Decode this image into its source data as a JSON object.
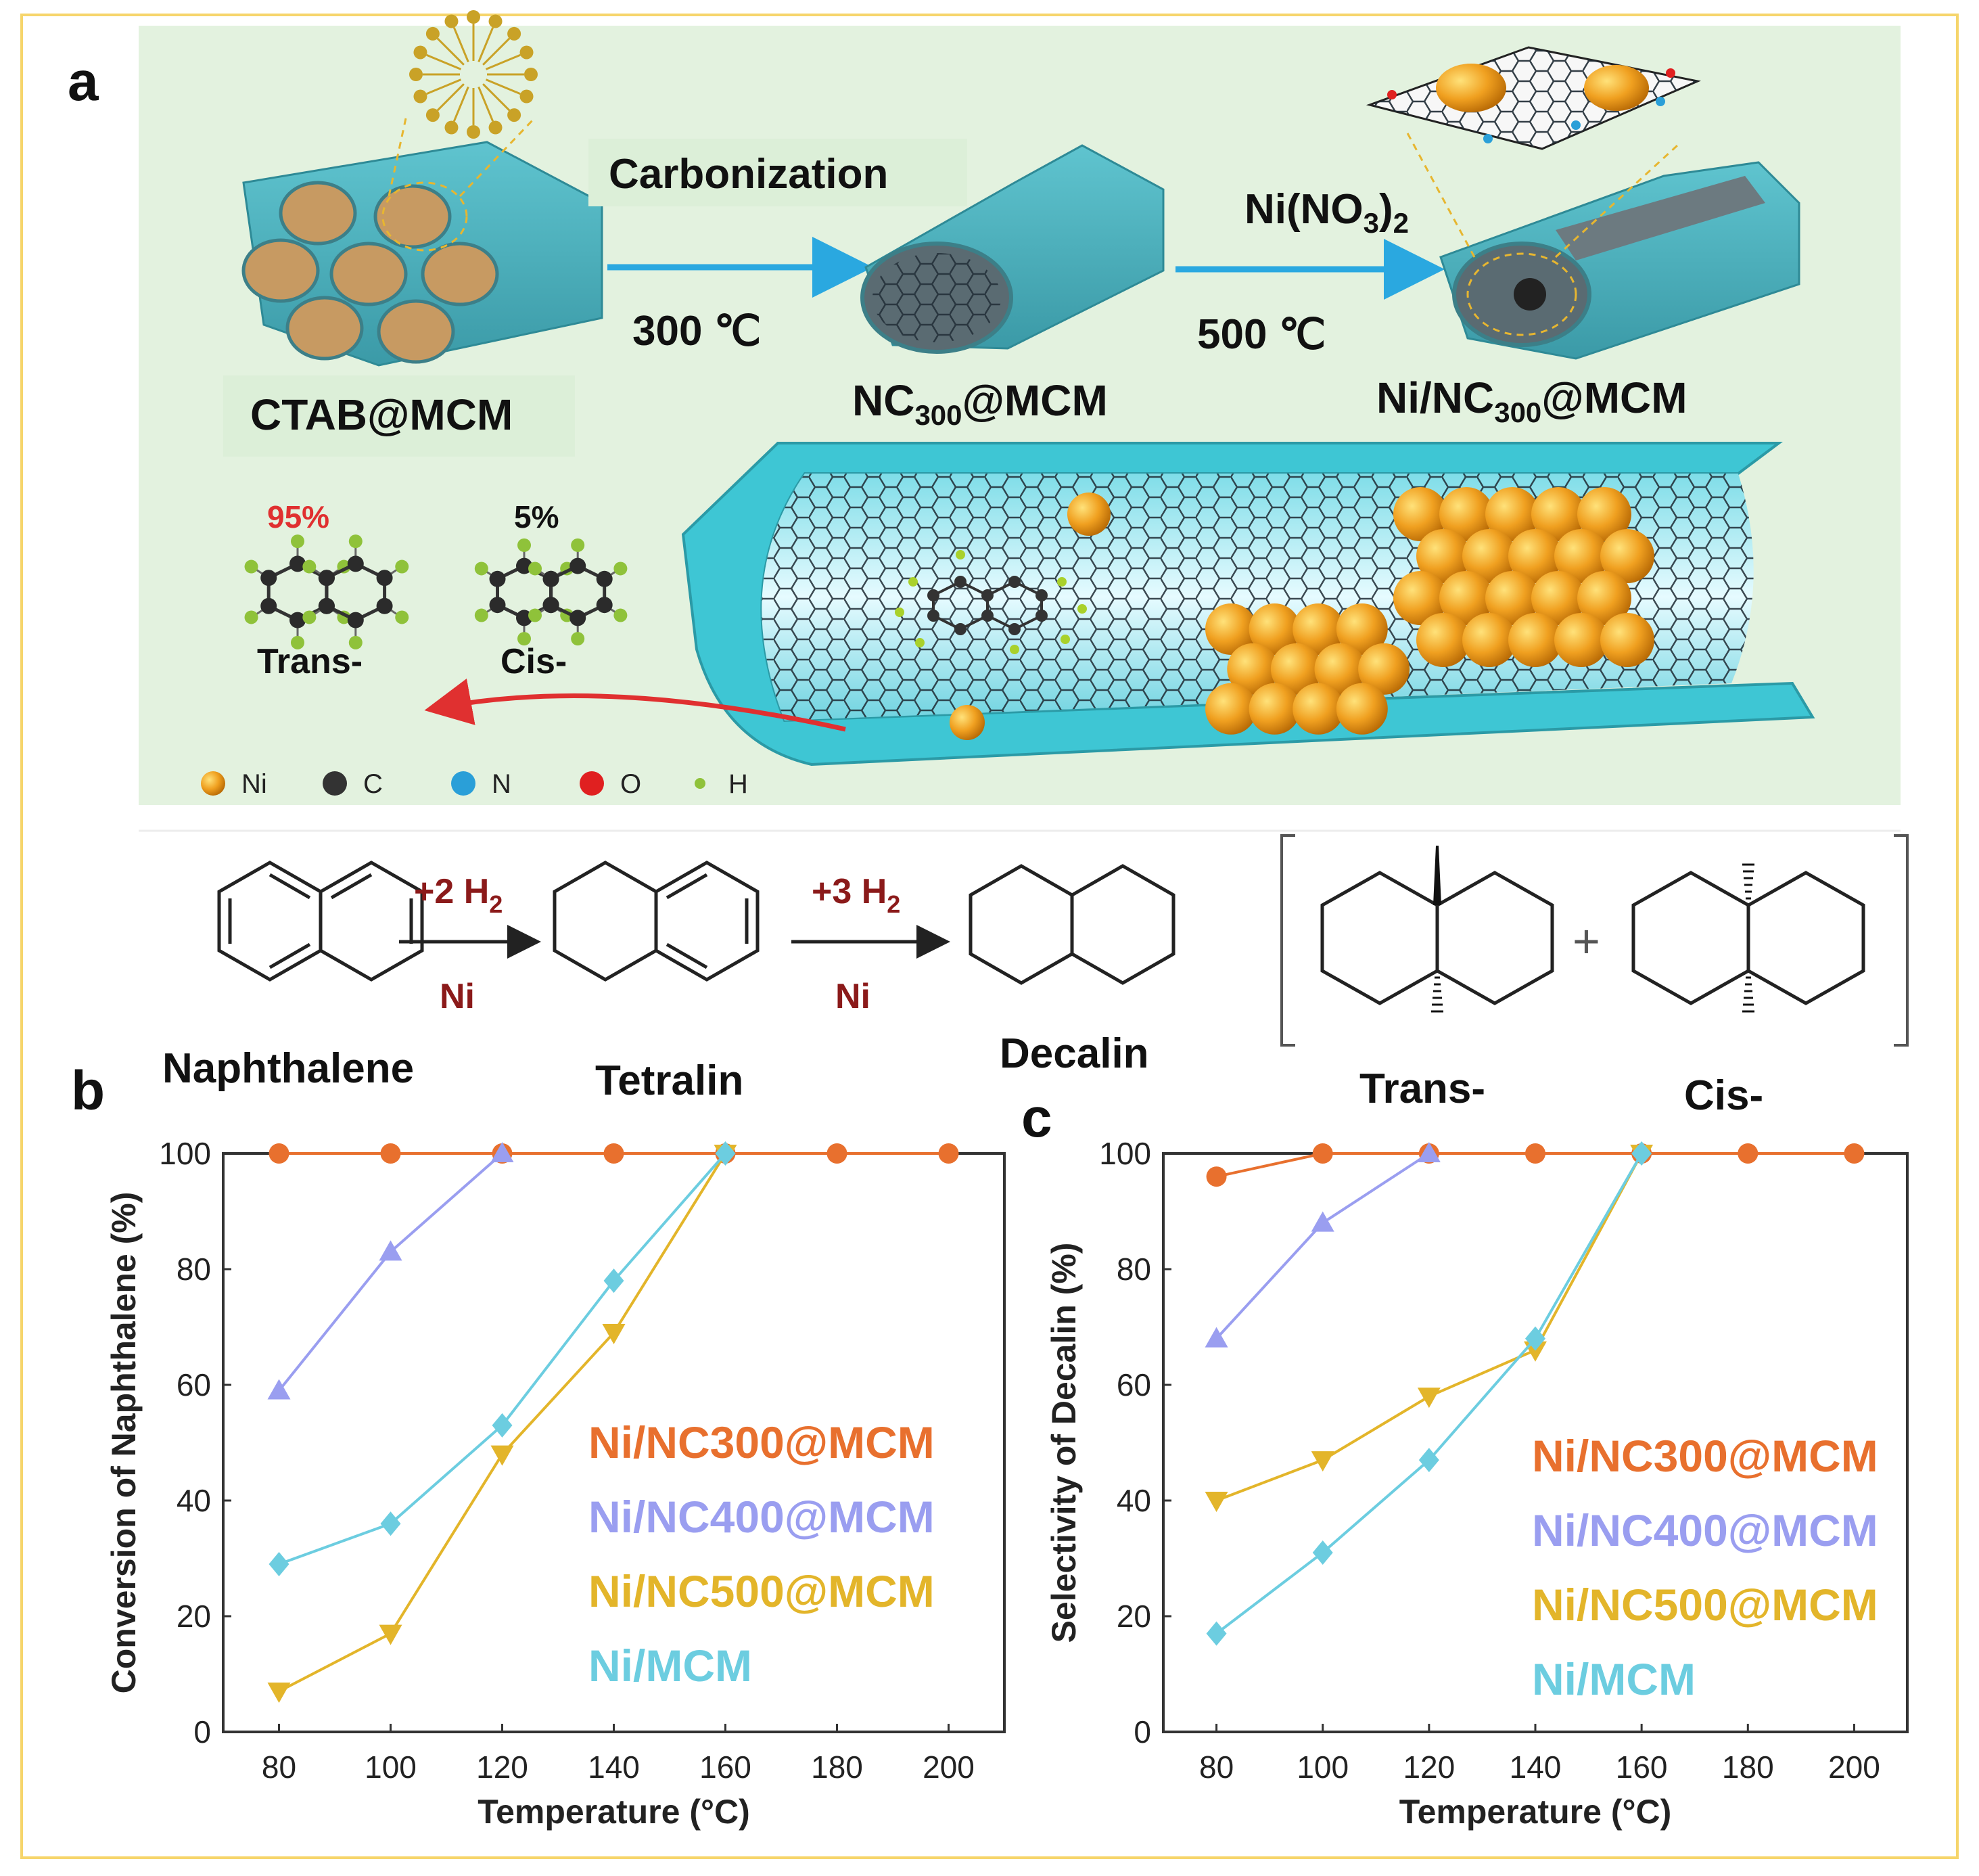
{
  "panel_labels": {
    "a": "a",
    "b": "b",
    "c": "c"
  },
  "scheme": {
    "step1_top": "Carbonization",
    "step1_bottom": "300 ℃",
    "step2_top_main": "Ni(NO",
    "step2_top_sub": "3",
    "step2_top_close": ")",
    "step2_top_sub2": "2",
    "step2_bottom": "500 ℃",
    "material1": "CTAB@MCM",
    "material2_a": "NC",
    "material2_sub": "300",
    "material2_b": "@MCM",
    "material3_a": "Ni/NC",
    "material3_sub": "300",
    "material3_b": "@MCM",
    "trans_pct": "95%",
    "cis_pct": "5%",
    "trans_label": "Trans-",
    "cis_label": "Cis-",
    "legend": [
      {
        "label": "Ni",
        "color": "#f0a020"
      },
      {
        "label": "C",
        "color": "#333333"
      },
      {
        "label": "N",
        "color": "#2a9fd8"
      },
      {
        "label": "O",
        "color": "#e02020"
      },
      {
        "label": "H",
        "color": "#8fc23a"
      }
    ]
  },
  "reaction": {
    "step1_reagent": "+2 H",
    "step1_reagent_sub": "2",
    "step1_catalyst": "Ni",
    "step2_reagent": "+3 H",
    "step2_reagent_sub": "2",
    "step2_catalyst": "Ni",
    "names": [
      "Naphthalene",
      "Tetralin",
      "Decalin",
      "Trans-",
      "Cis-"
    ]
  },
  "chart_data": [
    {
      "type": "line",
      "xlabel": "Temperature (°C)",
      "ylabel": "Conversion of Naphthalene (%)",
      "x": [
        80,
        100,
        120,
        140,
        160,
        180,
        200
      ],
      "xlim": [
        70,
        210
      ],
      "ylim": [
        0,
        100
      ],
      "yticks": [
        0,
        20,
        40,
        60,
        80,
        100
      ],
      "series": [
        {
          "name": "Ni/NC300@MCM",
          "color": "#e8702e",
          "marker": "circle",
          "points": [
            [
              80,
              100
            ],
            [
              100,
              100
            ],
            [
              120,
              100
            ],
            [
              140,
              100
            ],
            [
              160,
              100
            ],
            [
              180,
              100
            ],
            [
              200,
              100
            ]
          ]
        },
        {
          "name": "Ni/NC400@MCM",
          "color": "#9a9ef0",
          "marker": "triangle-up",
          "points": [
            [
              80,
              59
            ],
            [
              100,
              83
            ],
            [
              120,
              100
            ]
          ]
        },
        {
          "name": "Ni/NC500@MCM",
          "color": "#e3b52a",
          "marker": "triangle-down",
          "points": [
            [
              80,
              7
            ],
            [
              100,
              17
            ],
            [
              120,
              48
            ],
            [
              140,
              69
            ],
            [
              160,
              100
            ]
          ]
        },
        {
          "name": "Ni/MCM",
          "color": "#6ccde0",
          "marker": "diamond",
          "points": [
            [
              80,
              29
            ],
            [
              100,
              36
            ],
            [
              120,
              53
            ],
            [
              140,
              78
            ],
            [
              160,
              100
            ]
          ]
        }
      ]
    },
    {
      "type": "line",
      "xlabel": "Temperature (°C)",
      "ylabel": "Selectivity of Decalin (%)",
      "x": [
        80,
        100,
        120,
        140,
        160,
        180,
        200
      ],
      "xlim": [
        70,
        210
      ],
      "ylim": [
        0,
        100
      ],
      "yticks": [
        0,
        20,
        40,
        60,
        80,
        100
      ],
      "series": [
        {
          "name": "Ni/NC300@MCM",
          "color": "#e8702e",
          "marker": "circle",
          "points": [
            [
              80,
              96
            ],
            [
              100,
              100
            ],
            [
              120,
              100
            ],
            [
              140,
              100
            ],
            [
              160,
              100
            ],
            [
              180,
              100
            ],
            [
              200,
              100
            ]
          ]
        },
        {
          "name": "Ni/NC400@MCM",
          "color": "#9a9ef0",
          "marker": "triangle-up",
          "points": [
            [
              80,
              68
            ],
            [
              100,
              88
            ],
            [
              120,
              100
            ]
          ]
        },
        {
          "name": "Ni/NC500@MCM",
          "color": "#e3b52a",
          "marker": "triangle-down",
          "points": [
            [
              80,
              40
            ],
            [
              100,
              47
            ],
            [
              120,
              58
            ],
            [
              140,
              66
            ],
            [
              160,
              100
            ]
          ]
        },
        {
          "name": "Ni/MCM",
          "color": "#6ccde0",
          "marker": "diamond",
          "points": [
            [
              80,
              17
            ],
            [
              100,
              31
            ],
            [
              120,
              47
            ],
            [
              140,
              68
            ],
            [
              160,
              100
            ]
          ]
        }
      ]
    }
  ]
}
